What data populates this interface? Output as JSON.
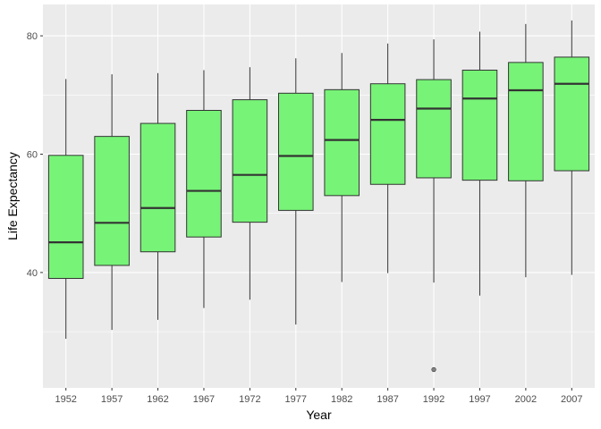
{
  "chart_data": {
    "type": "boxplot",
    "title": "",
    "xlabel": "Year",
    "ylabel": "Life Expectancy",
    "ylim": [
      20.5,
      85.3
    ],
    "y_ticks": [
      40,
      60,
      80
    ],
    "grid": true,
    "legend": "none",
    "categories": [
      "1952",
      "1957",
      "1962",
      "1967",
      "1972",
      "1977",
      "1982",
      "1987",
      "1992",
      "1997",
      "2002",
      "2007"
    ],
    "boxes": [
      {
        "category": "1952",
        "min": 28.8,
        "q1": 39.0,
        "median": 45.1,
        "q3": 59.8,
        "max": 72.7,
        "outliers": []
      },
      {
        "category": "1957",
        "min": 30.3,
        "q1": 41.2,
        "median": 48.4,
        "q3": 63.0,
        "max": 73.5,
        "outliers": []
      },
      {
        "category": "1962",
        "min": 32.0,
        "q1": 43.5,
        "median": 50.9,
        "q3": 65.2,
        "max": 73.7,
        "outliers": []
      },
      {
        "category": "1967",
        "min": 34.0,
        "q1": 46.0,
        "median": 53.8,
        "q3": 67.4,
        "max": 74.2,
        "outliers": []
      },
      {
        "category": "1972",
        "min": 35.4,
        "q1": 48.5,
        "median": 56.5,
        "q3": 69.2,
        "max": 74.7,
        "outliers": []
      },
      {
        "category": "1977",
        "min": 31.2,
        "q1": 50.5,
        "median": 59.7,
        "q3": 70.3,
        "max": 76.2,
        "outliers": []
      },
      {
        "category": "1982",
        "min": 38.4,
        "q1": 53.0,
        "median": 62.4,
        "q3": 70.9,
        "max": 77.1,
        "outliers": []
      },
      {
        "category": "1987",
        "min": 39.9,
        "q1": 54.9,
        "median": 65.8,
        "q3": 71.9,
        "max": 78.7,
        "outliers": []
      },
      {
        "category": "1992",
        "min": 38.3,
        "q1": 56.0,
        "median": 67.7,
        "q3": 72.6,
        "max": 79.4,
        "outliers": [
          23.6
        ]
      },
      {
        "category": "1997",
        "min": 36.1,
        "q1": 55.6,
        "median": 69.4,
        "q3": 74.2,
        "max": 80.7,
        "outliers": []
      },
      {
        "category": "2002",
        "min": 39.2,
        "q1": 55.5,
        "median": 70.8,
        "q3": 75.5,
        "max": 82.0,
        "outliers": []
      },
      {
        "category": "2007",
        "min": 39.6,
        "q1": 57.2,
        "median": 71.9,
        "q3": 76.4,
        "max": 82.6,
        "outliers": []
      }
    ],
    "colors": {
      "box_fill": "#77f377",
      "box_stroke": "#333333",
      "panel_bg": "#ebebeb",
      "grid": "#ffffff",
      "outlier": "#666666"
    }
  }
}
